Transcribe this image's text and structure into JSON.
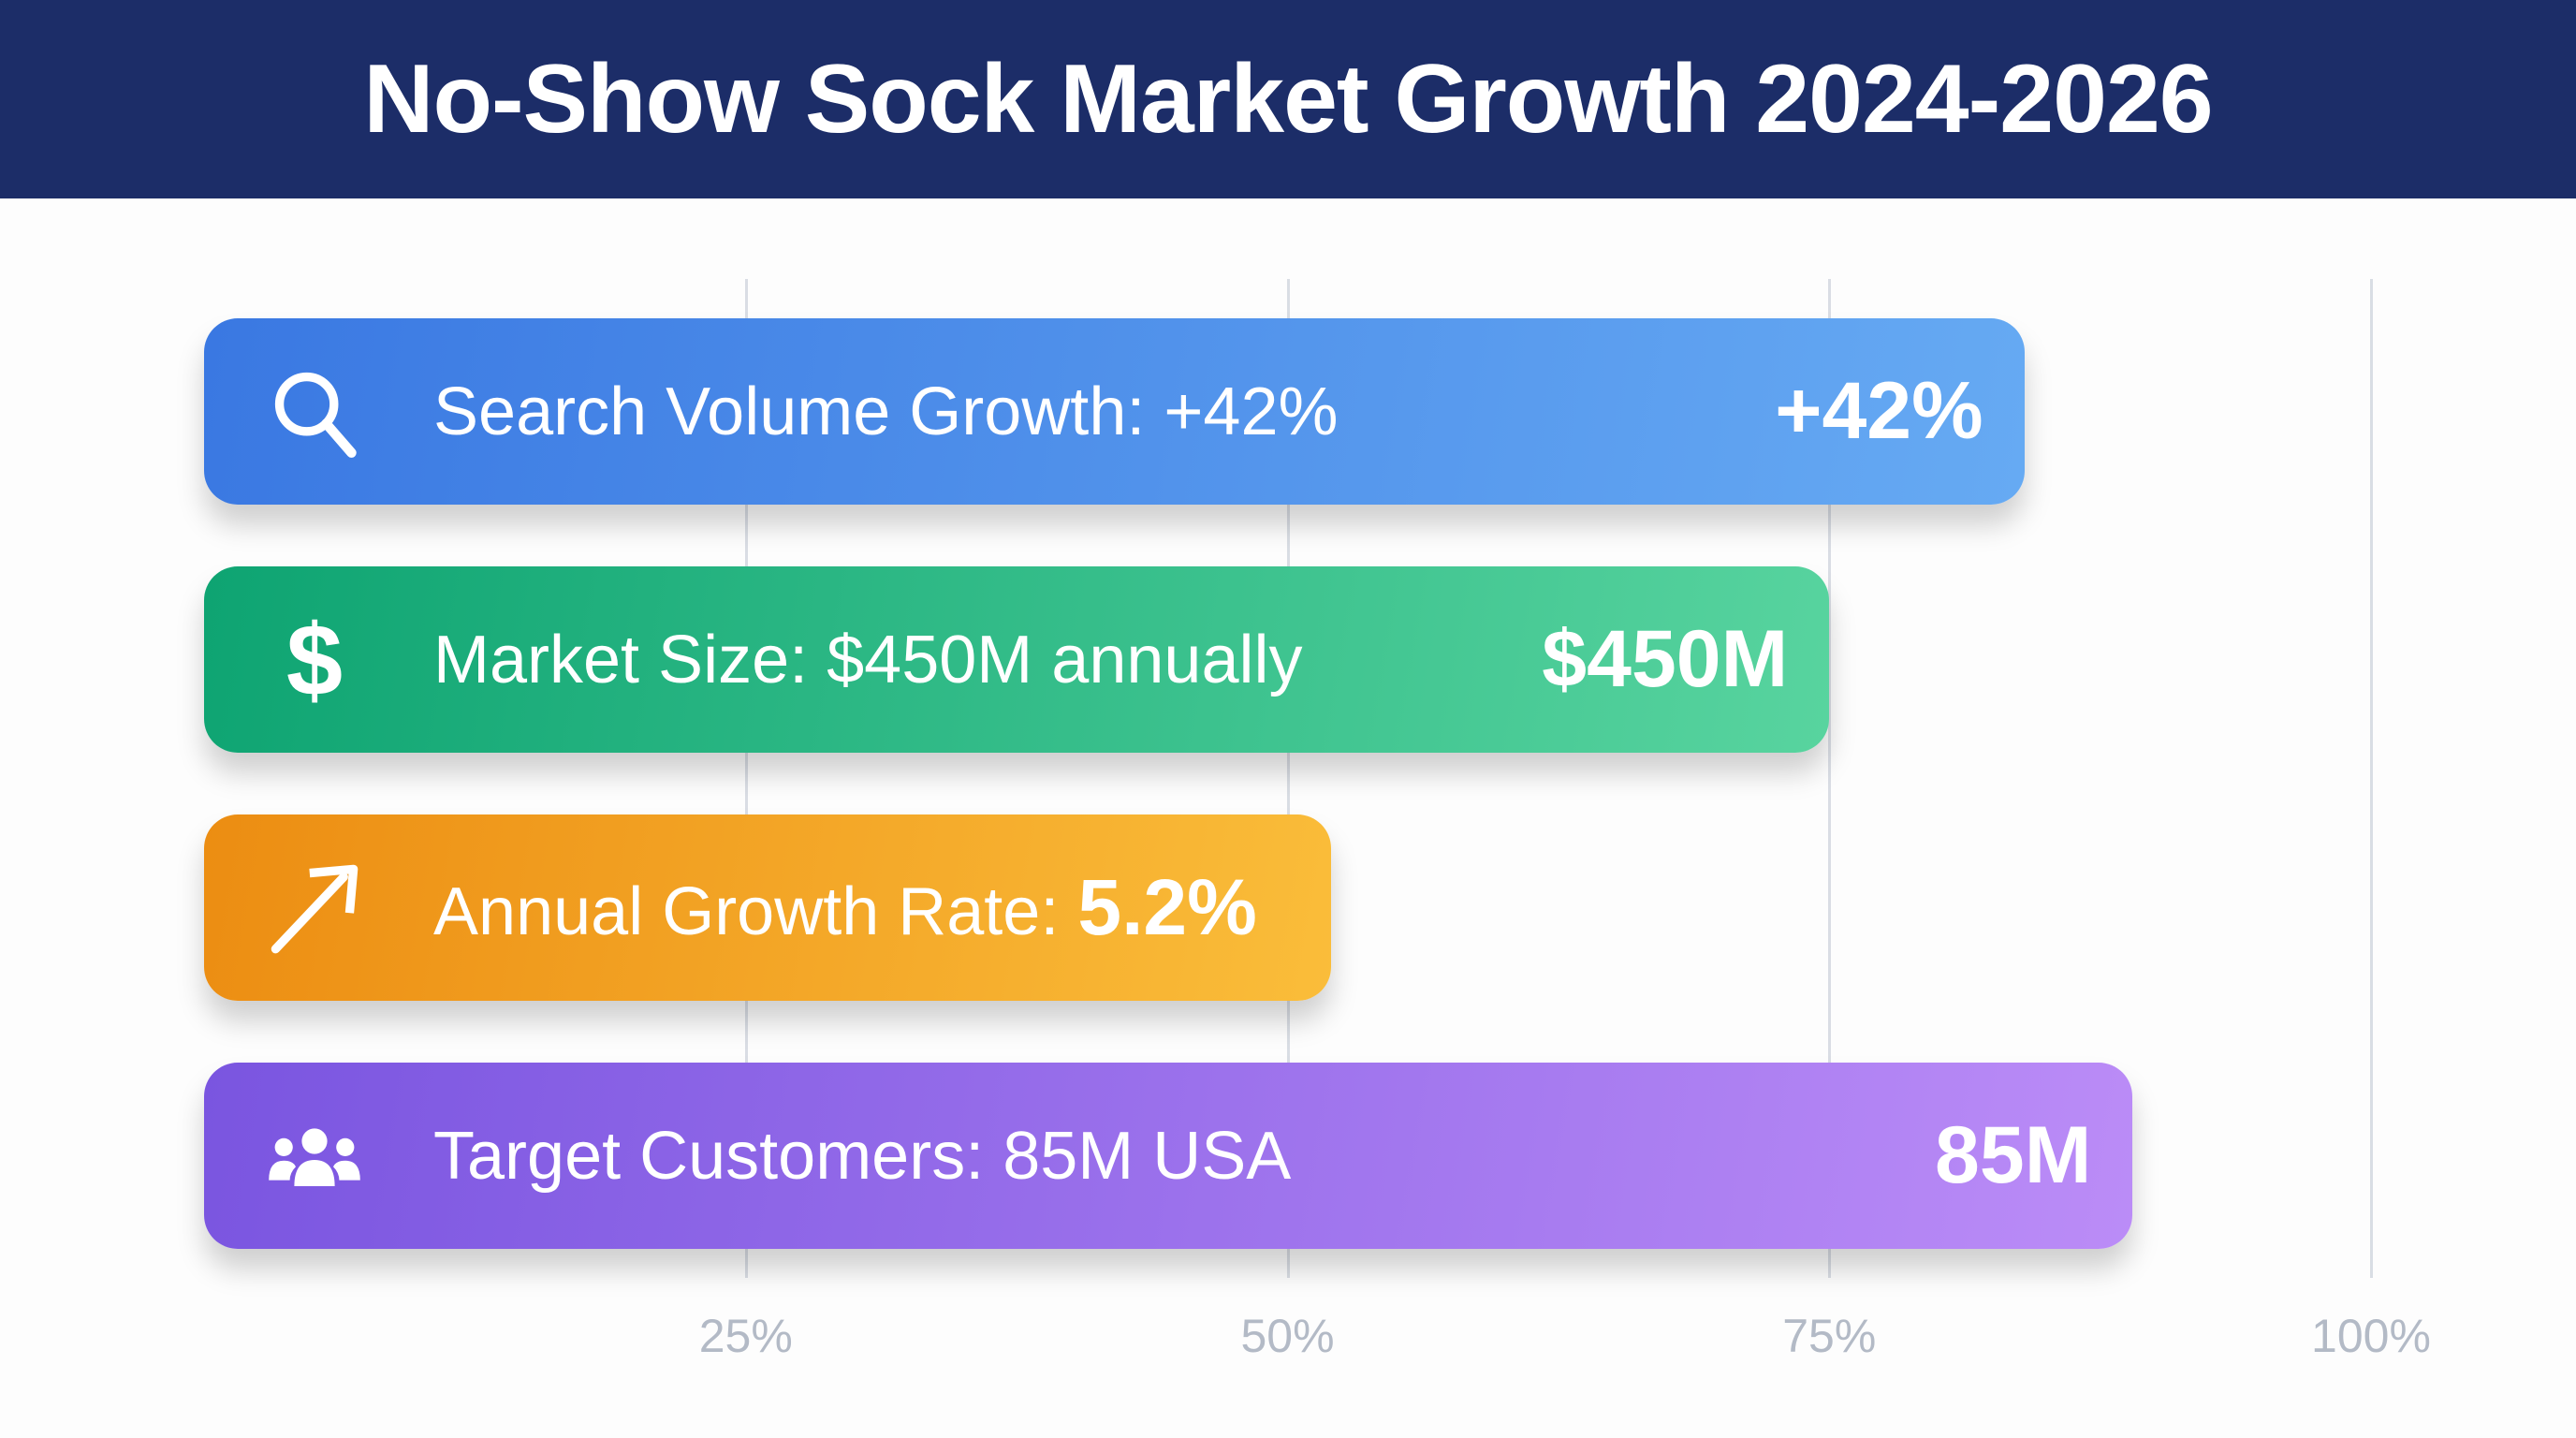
{
  "title": "No-Show Sock Market Growth 2024-2026",
  "chart_data": {
    "type": "bar",
    "orientation": "horizontal",
    "title": "No-Show Sock Market Growth 2024-2026",
    "xlim": [
      0,
      100
    ],
    "xticks": [
      "25%",
      "50%",
      "75%",
      "100%"
    ],
    "xtick_values": [
      25,
      50,
      75,
      100
    ],
    "grid": true,
    "bars": [
      {
        "label": "Search Volume Growth: +42%",
        "value_label": "+42%",
        "bold_inline": "",
        "scale_value": 84,
        "icon": "search-icon",
        "colors": [
          "#3a78e2",
          "#66aaf3"
        ]
      },
      {
        "label": "Market Size: $450M annually",
        "value_label": "$450M",
        "bold_inline": "",
        "scale_value": 75,
        "icon": "dollar-icon",
        "colors": [
          "#0ea472",
          "#58d49f"
        ]
      },
      {
        "label": "Annual Growth Rate: ",
        "value_label": "",
        "bold_inline": "5.2%",
        "scale_value": 52,
        "icon": "trending-up-arrow-icon",
        "colors": [
          "#ec8d12",
          "#fabd3a"
        ]
      },
      {
        "label": "Target Customers: 85M USA",
        "value_label": "85M",
        "bold_inline": "",
        "scale_value": 89,
        "icon": "users-group-icon",
        "colors": [
          "#7a55e0",
          "#bb8cf7"
        ]
      }
    ]
  }
}
